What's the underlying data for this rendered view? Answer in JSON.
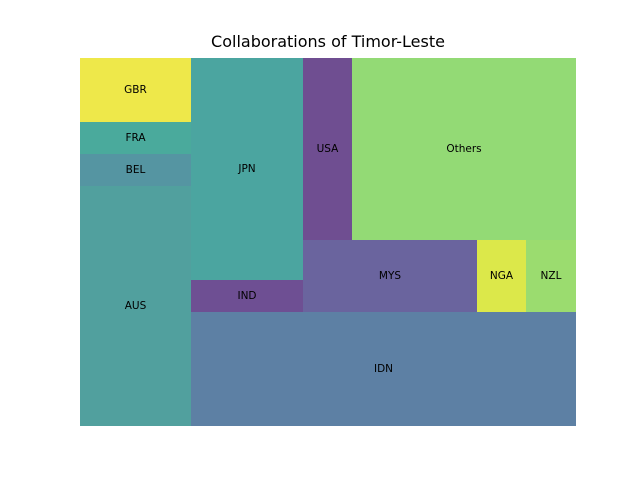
{
  "chart_data": {
    "type": "treemap",
    "title": "Collaborations of Timor-Leste",
    "cells": [
      {
        "label": "AUS",
        "color": "#51a09e"
      },
      {
        "label": "BEL",
        "color": "#5595a2"
      },
      {
        "label": "FRA",
        "color": "#4aaa9c"
      },
      {
        "label": "GBR",
        "color": "#eee84a"
      },
      {
        "label": "JPN",
        "color": "#4ba5a0"
      },
      {
        "label": "IND",
        "color": "#6e4f93"
      },
      {
        "label": "IDN",
        "color": "#5d80a4"
      },
      {
        "label": "USA",
        "color": "#6f4e91"
      },
      {
        "label": "Others",
        "color": "#93da75"
      },
      {
        "label": "MYS",
        "color": "#6a649e"
      },
      {
        "label": "NGA",
        "color": "#dce84a"
      },
      {
        "label": "NZL",
        "color": "#9bdc6f"
      }
    ]
  }
}
